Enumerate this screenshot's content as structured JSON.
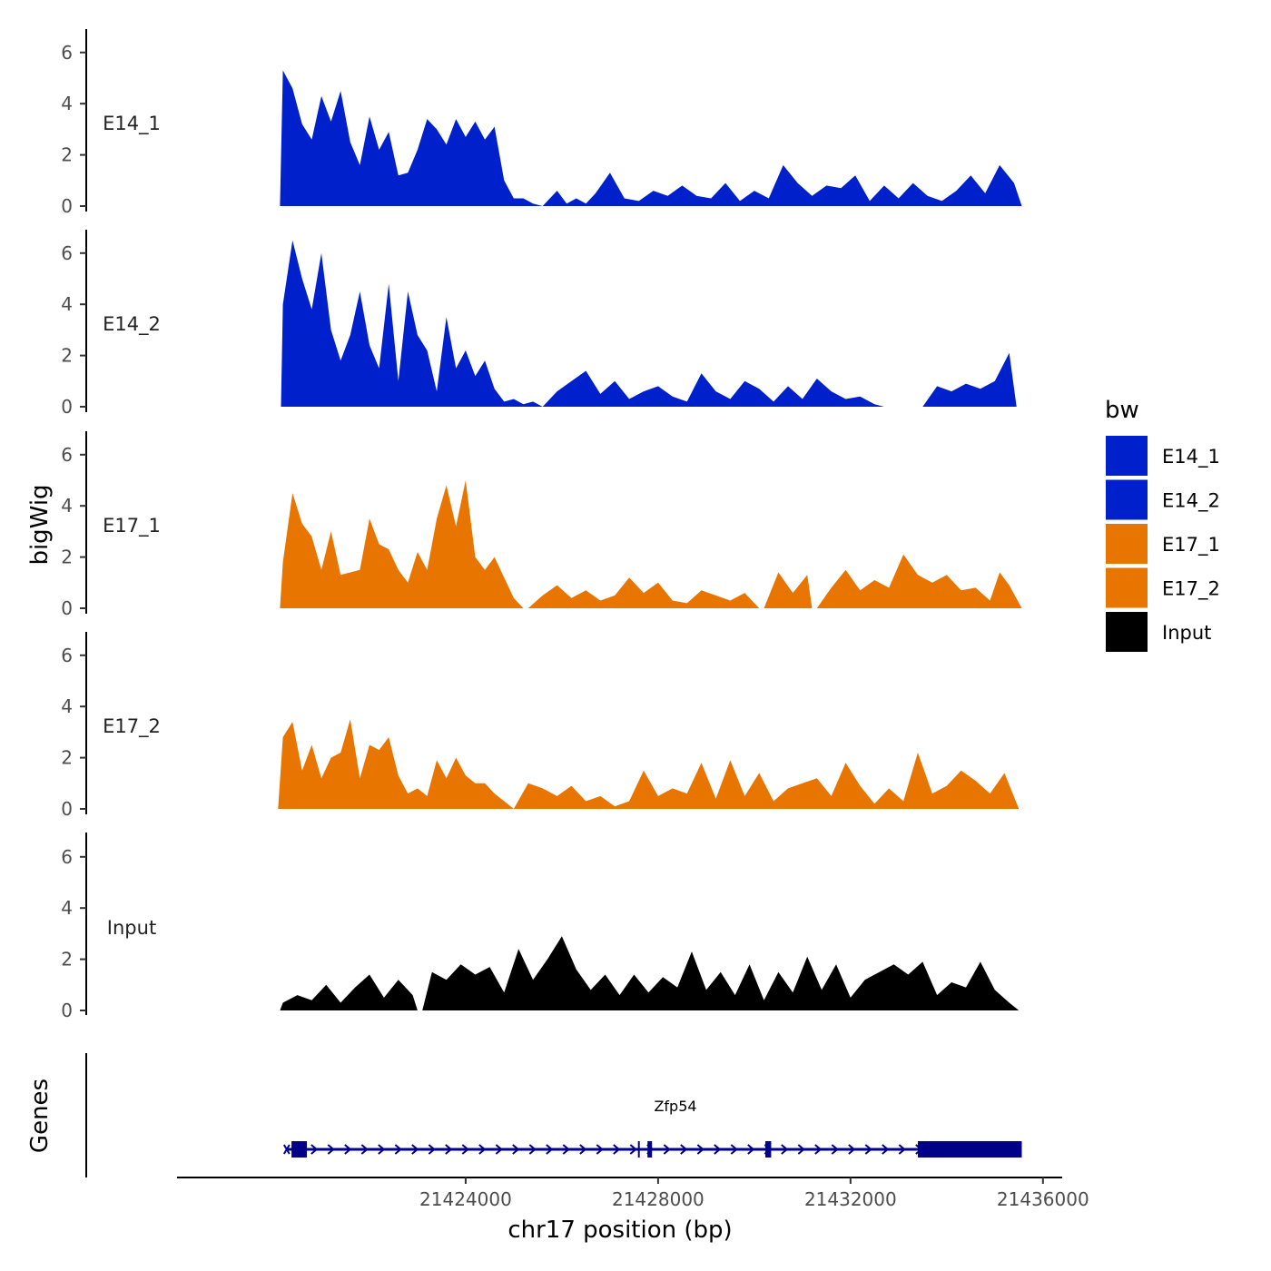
{
  "chart_data": {
    "type": "area",
    "ylabel": "bigWig",
    "xlabel": "chr17 position (bp)",
    "genes_label": "Genes",
    "ylim": [
      0,
      7
    ],
    "yticks": [
      0,
      2,
      4,
      6
    ],
    "x_range": [
      21418000,
      21436400
    ],
    "xticks": [
      21424000,
      21428000,
      21432000,
      21436000
    ],
    "x_tick_labels": [
      "21424000",
      "21428000",
      "21432000",
      "21436000"
    ],
    "legend": {
      "title": "bw",
      "position": "right",
      "entries": [
        {
          "label": "E14_1",
          "color": "#0020CC"
        },
        {
          "label": "E14_2",
          "color": "#0020CC"
        },
        {
          "label": "E17_1",
          "color": "#E87500"
        },
        {
          "label": "E17_2",
          "color": "#E87500"
        },
        {
          "label": "Input",
          "color": "#000000"
        }
      ]
    },
    "tracks": [
      {
        "name": "E14_1",
        "color": "#0020CC",
        "segments": [
          {
            "x": [
              21420140,
              21420200,
              21420400,
              21420600,
              21420800,
              21421000,
              21421200,
              21421400,
              21421600,
              21421800,
              21422000,
              21422200,
              21422400,
              21422600,
              21422800,
              21423000,
              21423200,
              21423400,
              21423600,
              21423800,
              21424000,
              21424200,
              21424400,
              21424600,
              21424800,
              21425000,
              21425200,
              21425400,
              21425600
            ],
            "y": [
              0,
              5.3,
              4.6,
              3.2,
              2.6,
              4.3,
              3.3,
              4.5,
              2.5,
              1.6,
              3.5,
              2.2,
              2.9,
              1.2,
              1.3,
              2.2,
              3.4,
              3.0,
              2.4,
              3.4,
              2.7,
              3.3,
              2.6,
              3.1,
              1.0,
              0.3,
              0.3,
              0.1,
              0
            ]
          },
          {
            "x": [
              21425600,
              21425900,
              21426100,
              21426300,
              21426500,
              21426700,
              21427000,
              21427300,
              21427600,
              21427900,
              21428200,
              21428500,
              21428800,
              21429100,
              21429400,
              21429700,
              21430000,
              21430300,
              21430600,
              21430900,
              21431200,
              21431500,
              21431800,
              21432100,
              21432400,
              21432700,
              21433000,
              21433300,
              21433600,
              21433900,
              21434200,
              21434500,
              21434800,
              21435100,
              21435400,
              21435560
            ],
            "y": [
              0,
              0.6,
              0.1,
              0.3,
              0.1,
              0.5,
              1.3,
              0.3,
              0.2,
              0.6,
              0.4,
              0.8,
              0.4,
              0.3,
              0.9,
              0.2,
              0.6,
              0.3,
              1.6,
              0.9,
              0.4,
              0.8,
              0.7,
              1.2,
              0.2,
              0.8,
              0.3,
              0.9,
              0.4,
              0.2,
              0.6,
              1.2,
              0.5,
              1.6,
              0.9,
              0
            ]
          }
        ]
      },
      {
        "name": "E14_2",
        "color": "#0020CC",
        "segments": [
          {
            "x": [
              21420160,
              21420200,
              21420400,
              21420600,
              21420800,
              21421000,
              21421200,
              21421400,
              21421600,
              21421800,
              21422000,
              21422200,
              21422400,
              21422600,
              21422800,
              21423000,
              21423200,
              21423400,
              21423600,
              21423800,
              21424000,
              21424200,
              21424400,
              21424600,
              21424800,
              21425000,
              21425200,
              21425400,
              21425600
            ],
            "y": [
              0,
              4.0,
              6.5,
              5.0,
              3.8,
              6.0,
              3.0,
              1.8,
              2.8,
              4.5,
              2.4,
              1.5,
              4.8,
              1.0,
              4.5,
              2.8,
              2.2,
              0.6,
              3.5,
              1.5,
              2.2,
              1.2,
              1.8,
              0.7,
              0.2,
              0.3,
              0.1,
              0.2,
              0
            ]
          },
          {
            "x": [
              21425600,
              21425900,
              21426200,
              21426500,
              21426800,
              21427100,
              21427400,
              21427700,
              21428000,
              21428300,
              21428600,
              21428900,
              21429200,
              21429500,
              21429800,
              21430100,
              21430400,
              21430700,
              21431000,
              21431300,
              21431600,
              21431900,
              21432200,
              21432500,
              21432700
            ],
            "y": [
              0,
              0.6,
              1.0,
              1.4,
              0.5,
              1.0,
              0.3,
              0.6,
              0.8,
              0.4,
              0.2,
              1.3,
              0.6,
              0.3,
              1.0,
              0.7,
              0.2,
              0.8,
              0.3,
              1.1,
              0.6,
              0.3,
              0.4,
              0.1,
              0
            ]
          },
          {
            "x": [
              21433500,
              21433800,
              21434100,
              21434400,
              21434700,
              21435000,
              21435300,
              21435450
            ],
            "y": [
              0,
              0.8,
              0.6,
              0.9,
              0.7,
              1.0,
              2.1,
              0
            ]
          }
        ]
      },
      {
        "name": "E17_1",
        "color": "#E87500",
        "segments": [
          {
            "x": [
              21420140,
              21420200,
              21420400,
              21420600,
              21420800,
              21421000,
              21421200,
              21421400,
              21421600,
              21421800,
              21422000,
              21422200,
              21422400,
              21422600,
              21422800,
              21423000,
              21423200,
              21423400,
              21423600,
              21423800,
              21424000,
              21424200,
              21424400,
              21424600,
              21424800,
              21425000,
              21425200
            ],
            "y": [
              0,
              1.8,
              4.5,
              3.3,
              2.8,
              1.5,
              3.0,
              1.3,
              1.4,
              1.5,
              3.5,
              2.5,
              2.3,
              1.5,
              1.0,
              2.2,
              1.5,
              3.5,
              4.8,
              3.2,
              5.0,
              2.0,
              1.5,
              2.0,
              1.2,
              0.4,
              0
            ]
          },
          {
            "x": [
              21425300,
              21425600,
              21425900,
              21426200,
              21426500,
              21426800,
              21427100,
              21427400,
              21427700,
              21428000,
              21428300,
              21428600,
              21428900,
              21429200,
              21429500,
              21429800,
              21430100
            ],
            "y": [
              0,
              0.5,
              0.9,
              0.4,
              0.7,
              0.3,
              0.5,
              1.2,
              0.6,
              1.0,
              0.3,
              0.2,
              0.7,
              0.5,
              0.3,
              0.6,
              0
            ]
          },
          {
            "x": [
              21430200,
              21430500,
              21430800,
              21431100,
              21431200
            ],
            "y": [
              0,
              1.4,
              0.6,
              1.3,
              0
            ]
          },
          {
            "x": [
              21431300,
              21431600,
              21431900,
              21432200,
              21432500,
              21432800,
              21433100,
              21433400,
              21433700,
              21434000,
              21434300,
              21434600,
              21434900,
              21435100,
              21435300,
              21435560
            ],
            "y": [
              0,
              0.8,
              1.5,
              0.7,
              1.1,
              0.8,
              2.1,
              1.3,
              1.0,
              1.3,
              0.7,
              0.8,
              0.3,
              1.4,
              0.9,
              0
            ]
          }
        ]
      },
      {
        "name": "E17_2",
        "color": "#E87500",
        "segments": [
          {
            "x": [
              21420100,
              21420200,
              21420400,
              21420600,
              21420800,
              21421000,
              21421200,
              21421400,
              21421600,
              21421800,
              21422000,
              21422200,
              21422400,
              21422600,
              21422800,
              21423000,
              21423200,
              21423400,
              21423600,
              21423800,
              21424000,
              21424200,
              21424400,
              21424600,
              21424800,
              21425000
            ],
            "y": [
              0,
              2.8,
              3.4,
              1.5,
              2.5,
              1.2,
              2.0,
              2.2,
              3.5,
              1.2,
              2.5,
              2.3,
              2.8,
              1.3,
              0.6,
              0.8,
              0.5,
              1.9,
              1.2,
              2.0,
              1.3,
              1.0,
              1.0,
              0.6,
              0.3,
              0
            ]
          },
          {
            "x": [
              21425000,
              21425300,
              21425600,
              21425900,
              21426200,
              21426500,
              21426800,
              21427100,
              21427400,
              21427700,
              21428000,
              21428300,
              21428600,
              21428900,
              21429200,
              21429500,
              21429800,
              21430100,
              21430400,
              21430700,
              21431000,
              21431300,
              21431600,
              21431900,
              21432200,
              21432500,
              21432800,
              21433100,
              21433400,
              21433700,
              21434000,
              21434300,
              21434600,
              21434900,
              21435200,
              21435500
            ],
            "y": [
              0,
              1.0,
              0.8,
              0.5,
              0.9,
              0.3,
              0.5,
              0.1,
              0.3,
              1.5,
              0.5,
              0.8,
              0.6,
              1.8,
              0.4,
              1.9,
              0.5,
              1.4,
              0.3,
              0.8,
              1.0,
              1.2,
              0.5,
              1.8,
              0.9,
              0.2,
              0.8,
              0.3,
              2.2,
              0.6,
              0.9,
              1.5,
              1.1,
              0.6,
              1.4,
              0
            ]
          }
        ]
      },
      {
        "name": "Input",
        "color": "#000000",
        "segments": [
          {
            "x": [
              21420140,
              21420200,
              21420500,
              21420800,
              21421100,
              21421400,
              21421700,
              21422000,
              21422300,
              21422600,
              21422900,
              21423000
            ],
            "y": [
              0,
              0.3,
              0.6,
              0.4,
              1.0,
              0.3,
              0.9,
              1.4,
              0.5,
              1.2,
              0.6,
              0
            ]
          },
          {
            "x": [
              21423100,
              21423300,
              21423600,
              21423900,
              21424200,
              21424500,
              21424800,
              21425100,
              21425400,
              21425700,
              21426000,
              21426300,
              21426600,
              21426900,
              21427200,
              21427500,
              21427800,
              21428100,
              21428400,
              21428700,
              21429000,
              21429300,
              21429600,
              21429900,
              21430200,
              21430500,
              21430800,
              21431100,
              21431400,
              21431700,
              21432000,
              21432300,
              21432600,
              21432900,
              21433200,
              21433500,
              21433800,
              21434100,
              21434400,
              21434700,
              21435000,
              21435300,
              21435500
            ],
            "y": [
              0,
              1.5,
              1.2,
              1.8,
              1.4,
              1.7,
              0.7,
              2.4,
              1.2,
              2.0,
              2.9,
              1.6,
              0.8,
              1.4,
              0.6,
              1.4,
              0.7,
              1.3,
              0.9,
              2.3,
              0.8,
              1.5,
              0.6,
              1.8,
              0.4,
              1.5,
              0.7,
              2.1,
              0.8,
              1.8,
              0.5,
              1.2,
              1.5,
              1.8,
              1.4,
              1.9,
              0.6,
              1.1,
              0.9,
              1.9,
              0.8,
              0.3,
              0
            ]
          }
        ]
      }
    ],
    "gene": {
      "name": "Zfp54",
      "color": "#000088",
      "start": 21420280,
      "end": 21435560,
      "strand": "+",
      "exons": [
        {
          "start": 21420380,
          "end": 21420700
        },
        {
          "start": 21427780,
          "end": 21427860
        },
        {
          "start": 21430230,
          "end": 21430350
        },
        {
          "start": 21433400,
          "end": 21435560
        }
      ]
    }
  }
}
